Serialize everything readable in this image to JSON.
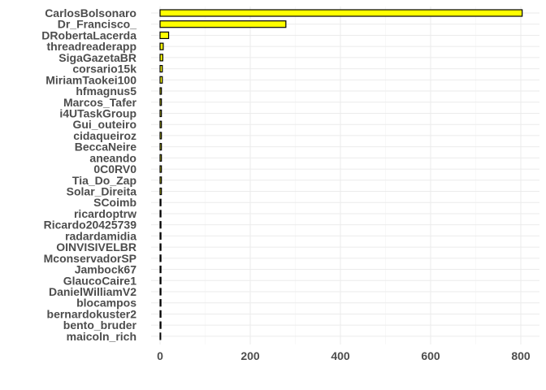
{
  "chart_data": {
    "type": "bar",
    "orientation": "horizontal",
    "title": "",
    "xlabel": "",
    "ylabel": "",
    "bar_color": "#ffff00",
    "bar_outline": "#000000",
    "grid": true,
    "xlim": [
      0,
      820
    ],
    "xticks": [
      0,
      200,
      400,
      600,
      800
    ],
    "categories": [
      "CarlosBolsonaro",
      "Dr_Francisco_",
      "DRobertaLacerda",
      "threadreaderapp",
      "SigaGazetaBR",
      "corsario15k",
      "MiriamTaokei100",
      "hfmagnus5",
      "Marcos_Tafer",
      "i4UTaskGroup",
      "Gui_outeiro",
      "cidaqueiroz",
      "BeccaNeire",
      "aneando",
      "0C0RV0",
      "Tia_Do_Zap",
      "Solar_Direita",
      "SCoimb",
      "ricardoptrw",
      "Ricardo20425739",
      "radardamidia",
      "OINVISIVELBR",
      "MconservadorSP",
      "Jambock67",
      "GlaucoCaire1",
      "DanielWilliamV2",
      "blocampos",
      "bernardokuster2",
      "bento_bruder",
      "maicoln_rich"
    ],
    "values": [
      803,
      279,
      19,
      7,
      6,
      5,
      5,
      3,
      3,
      3,
      3,
      3,
      3,
      3,
      3,
      3,
      3,
      2,
      2,
      2,
      2,
      2,
      2,
      2,
      2,
      2,
      2,
      2,
      2,
      1
    ]
  }
}
